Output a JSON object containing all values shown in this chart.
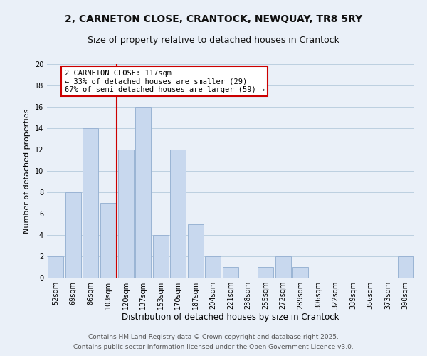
{
  "title": "2, CARNETON CLOSE, CRANTOCK, NEWQUAY, TR8 5RY",
  "subtitle": "Size of property relative to detached houses in Crantock",
  "xlabel": "Distribution of detached houses by size in Crantock",
  "ylabel": "Number of detached properties",
  "bar_labels": [
    "52sqm",
    "69sqm",
    "86sqm",
    "103sqm",
    "120sqm",
    "137sqm",
    "153sqm",
    "170sqm",
    "187sqm",
    "204sqm",
    "221sqm",
    "238sqm",
    "255sqm",
    "272sqm",
    "289sqm",
    "306sqm",
    "322sqm",
    "339sqm",
    "356sqm",
    "373sqm",
    "390sqm"
  ],
  "bar_values": [
    2,
    8,
    14,
    7,
    12,
    16,
    4,
    12,
    5,
    2,
    1,
    0,
    1,
    2,
    1,
    0,
    0,
    0,
    0,
    0,
    2
  ],
  "bar_color": "#c8d8ee",
  "bar_edge_color": "#9ab4d4",
  "grid_color": "#bccfe0",
  "background_color": "#eaf0f8",
  "vline_color": "#cc0000",
  "vline_pos": 4,
  "annotation_title": "2 CARNETON CLOSE: 117sqm",
  "annotation_line1": "← 33% of detached houses are smaller (29)",
  "annotation_line2": "67% of semi-detached houses are larger (59) →",
  "annotation_box_facecolor": "#ffffff",
  "annotation_box_edgecolor": "#cc0000",
  "ylim": [
    0,
    20
  ],
  "yticks": [
    0,
    2,
    4,
    6,
    8,
    10,
    12,
    14,
    16,
    18,
    20
  ],
  "footer1": "Contains HM Land Registry data © Crown copyright and database right 2025.",
  "footer2": "Contains public sector information licensed under the Open Government Licence v3.0.",
  "title_fontsize": 10,
  "subtitle_fontsize": 9,
  "xlabel_fontsize": 8.5,
  "ylabel_fontsize": 8,
  "tick_fontsize": 7,
  "annotation_fontsize": 7.5,
  "footer_fontsize": 6.5
}
